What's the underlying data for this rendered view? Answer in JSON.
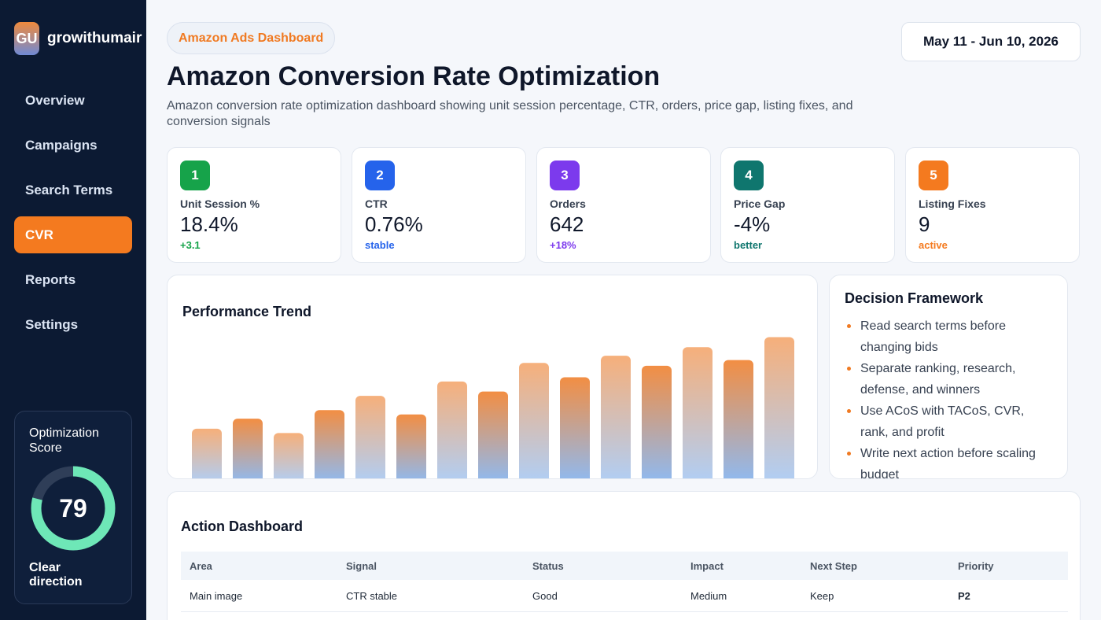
{
  "brand": {
    "logo_text": "GU",
    "name": "growithumair"
  },
  "sidebar": {
    "nav": [
      "Overview",
      "Campaigns",
      "Search Terms",
      "CVR",
      "Reports",
      "Settings"
    ],
    "active_index": 3,
    "score": {
      "title": "Optimization Score",
      "value": "79",
      "percent": 79,
      "label": "Clear direction"
    }
  },
  "header": {
    "pill": "Amazon Ads Dashboard",
    "date_range": "May 11 - Jun 10, 2026",
    "title": "Amazon Conversion Rate Optimization",
    "subtitle": "Amazon conversion rate optimization dashboard showing unit session percentage, CTR, orders, price gap, listing fixes, and conversion signals"
  },
  "kpis": [
    {
      "num": "1",
      "label": "Unit Session %",
      "value": "18.4%",
      "delta": "+3.1",
      "color": "#16a34a",
      "delta_color": "#16a34a"
    },
    {
      "num": "2",
      "label": "CTR",
      "value": "0.76%",
      "delta": "stable",
      "color": "#2563eb",
      "delta_color": "#2563eb"
    },
    {
      "num": "3",
      "label": "Orders",
      "value": "642",
      "delta": "+18%",
      "color": "#7c3aed",
      "delta_color": "#7c3aed"
    },
    {
      "num": "4",
      "label": "Price Gap",
      "value": "-4%",
      "delta": "better",
      "color": "#0f766e",
      "delta_color": "#0f766e"
    },
    {
      "num": "5",
      "label": "Listing Fixes",
      "value": "9",
      "delta": "active",
      "color": "#f47a1f",
      "delta_color": "#f47a1f"
    }
  ],
  "chart_data": {
    "type": "bar",
    "title": "Performance Trend",
    "values": [
      38,
      45,
      35,
      51,
      61,
      48,
      71,
      64,
      84,
      74,
      89,
      82,
      95,
      86,
      102
    ],
    "ylim": [
      0,
      110
    ],
    "colors": {
      "top": "#f07a22",
      "bottom": "#7aaef0"
    }
  },
  "framework": {
    "title": "Decision Framework",
    "items": [
      "Read search terms before changing bids",
      "Separate ranking, research, defense, and winners",
      "Use ACoS with TACoS, CVR, rank, and profit",
      "Write next action before scaling budget"
    ]
  },
  "actions": {
    "title": "Action Dashboard",
    "columns": [
      "Area",
      "Signal",
      "Status",
      "Impact",
      "Next Step",
      "Priority"
    ],
    "rows": [
      [
        "Main image",
        "CTR stable",
        "Good",
        "Medium",
        "Keep",
        "P2"
      ]
    ]
  }
}
